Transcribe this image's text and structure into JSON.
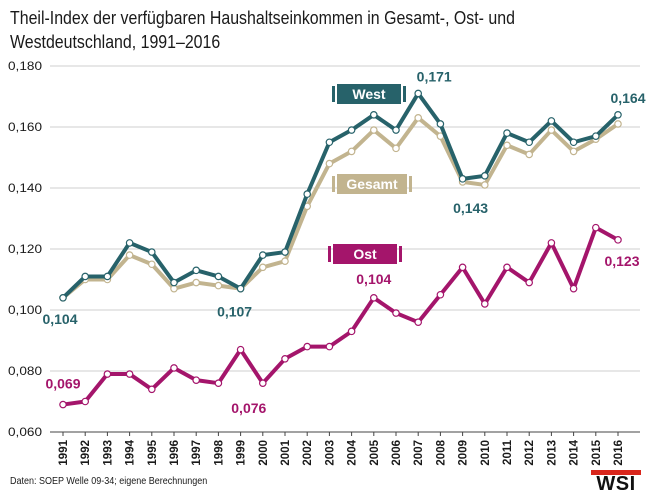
{
  "title": "Theil-Index der verfügbaren Haushaltseinkommen in Gesamt-, Ost- und Westdeutschland, 1991–2016",
  "source": "Daten: SOEP Welle 09-34; eigene Berechnungen",
  "logo": "WSI",
  "chart_data": {
    "type": "line",
    "title": "Theil-Index der verfügbaren Haushaltseinkommen in Gesamt-, Ost- und Westdeutschland, 1991–2016",
    "xlabel": "",
    "ylabel": "",
    "ylim": [
      0.06,
      0.18
    ],
    "yticks": [
      "0,060",
      "0,080",
      "0,100",
      "0,120",
      "0,140",
      "0,160",
      "0,180"
    ],
    "grid": true,
    "categories": [
      "1991",
      "1992",
      "1993",
      "1994",
      "1995",
      "1996",
      "1997",
      "1998",
      "1999",
      "2000",
      "2001",
      "2002",
      "2003",
      "2004",
      "2005",
      "2006",
      "2007",
      "2008",
      "2009",
      "2010",
      "2011",
      "2012",
      "2013",
      "2014",
      "2015",
      "2016"
    ],
    "series": [
      {
        "name": "Gesamt",
        "color": "#c2b48f",
        "values": [
          0.104,
          0.11,
          0.11,
          0.118,
          0.115,
          0.107,
          0.109,
          0.108,
          0.107,
          0.114,
          0.116,
          0.134,
          0.148,
          0.152,
          0.159,
          0.153,
          0.163,
          0.157,
          0.142,
          0.141,
          0.154,
          0.151,
          0.159,
          0.152,
          0.156,
          0.161
        ]
      },
      {
        "name": "West",
        "color": "#27626a",
        "values": [
          0.104,
          0.111,
          0.111,
          0.122,
          0.119,
          0.109,
          0.113,
          0.111,
          0.107,
          0.118,
          0.119,
          0.138,
          0.155,
          0.159,
          0.164,
          0.159,
          0.171,
          0.161,
          0.143,
          0.144,
          0.158,
          0.155,
          0.162,
          0.155,
          0.157,
          0.164
        ]
      },
      {
        "name": "Ost",
        "color": "#a4156b",
        "values": [
          0.069,
          0.07,
          0.079,
          0.079,
          0.074,
          0.081,
          0.077,
          0.076,
          0.087,
          0.076,
          0.084,
          0.088,
          0.088,
          0.093,
          0.104,
          0.099,
          0.096,
          0.105,
          0.114,
          0.102,
          0.114,
          0.109,
          0.122,
          0.107,
          0.127,
          0.123
        ]
      }
    ],
    "legend_tags": [
      {
        "text": "West",
        "series": "West"
      },
      {
        "text": "Gesamt",
        "series": "Gesamt"
      },
      {
        "text": "Ost",
        "series": "Ost"
      }
    ],
    "annotations": [
      {
        "text": "0,104",
        "series": "West",
        "x": "1991",
        "color": "#27626a"
      },
      {
        "text": "0,107",
        "series": "West",
        "x": "1999",
        "color": "#27626a"
      },
      {
        "text": "0,171",
        "series": "West",
        "x": "2007",
        "color": "#27626a"
      },
      {
        "text": "0,143",
        "series": "West",
        "x": "2009",
        "color": "#27626a"
      },
      {
        "text": "0,164",
        "series": "West",
        "x": "2016",
        "color": "#27626a"
      },
      {
        "text": "0,069",
        "series": "Ost",
        "x": "1991",
        "color": "#a4156b"
      },
      {
        "text": "0,076",
        "series": "Ost",
        "x": "2000",
        "color": "#a4156b"
      },
      {
        "text": "0,104",
        "series": "Ost",
        "x": "2005",
        "color": "#a4156b"
      },
      {
        "text": "0,123",
        "series": "Ost",
        "x": "2016",
        "color": "#a4156b"
      }
    ]
  }
}
